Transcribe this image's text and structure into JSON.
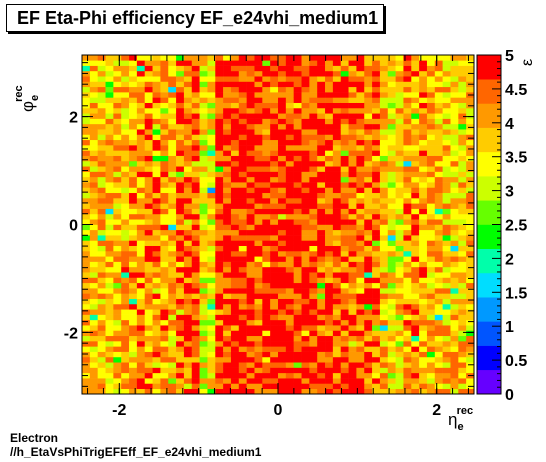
{
  "title": "EF Eta-Phi efficiency EF_e24vhi_medium1",
  "footer": {
    "line1": "Electron",
    "line2": "//h_EtaVsPhiTrigEFEff_EF_e24vhi_medium1"
  },
  "chart_data": {
    "type": "heatmap",
    "title": "EF Eta-Phi efficiency EF_e24vhi_medium1",
    "xlabel": {
      "symbol": "η",
      "sub": "e",
      "sup": "rec"
    },
    "ylabel": {
      "symbol": "φ",
      "sub": "e",
      "sup": "rec"
    },
    "zlabel": "ε",
    "xlim": [
      -2.47,
      2.47
    ],
    "ylim": [
      -3.1416,
      3.1416
    ],
    "zlim": [
      0,
      5
    ],
    "x_ticks": [
      -2,
      0,
      2
    ],
    "x_tick_labels": [
      "-2",
      "0",
      "2"
    ],
    "y_ticks": [
      -2,
      0,
      2
    ],
    "y_tick_labels": [
      "-2",
      "0",
      "2"
    ],
    "z_ticks": [
      0,
      0.5,
      1,
      1.5,
      2,
      2.5,
      3,
      3.5,
      4,
      4.5,
      5
    ],
    "z_tick_labels": [
      "0",
      "0.5",
      "1",
      "1.5",
      "2",
      "2.5",
      "3",
      "3.5",
      "4",
      "4.5",
      "5"
    ],
    "n_bins_x": 50,
    "n_bins_y": 64,
    "eta_bin_mean_efficiency": [
      3.9,
      3.9,
      3.9,
      3.8,
      3.9,
      4.0,
      4.1,
      4.1,
      4.2,
      4.3,
      4.0,
      3.9,
      4.5,
      4.5,
      4.6,
      3.5,
      3.6,
      4.7,
      4.7,
      4.7,
      4.8,
      4.8,
      4.8,
      4.8,
      4.9,
      4.9,
      4.8,
      4.8,
      4.8,
      4.8,
      4.7,
      4.7,
      4.6,
      4.6,
      4.6,
      4.4,
      4.4,
      4.4,
      3.9,
      3.5,
      3.7,
      4.1,
      4.2,
      4.1,
      4.0,
      3.9,
      3.9,
      3.8,
      3.8,
      3.9
    ],
    "grid": false,
    "colorbar": "right"
  },
  "palette": [
    "#6600ff",
    "#0000ff",
    "#0055ff",
    "#0099ff",
    "#00ddff",
    "#00ffaa",
    "#00ff00",
    "#66ff00",
    "#ccff00",
    "#ffff00",
    "#ffcc00",
    "#ff9900",
    "#ff6600",
    "#ff0000"
  ]
}
